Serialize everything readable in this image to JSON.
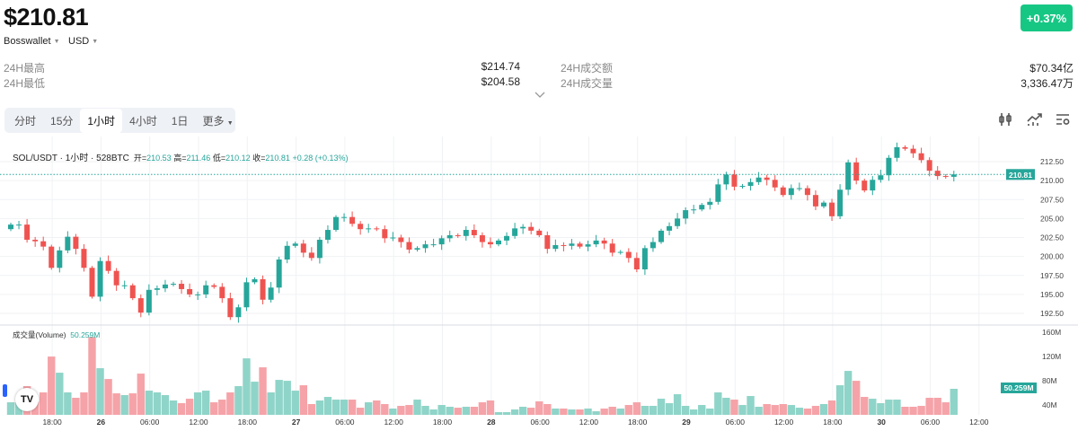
{
  "header": {
    "price": "$210.81",
    "exchange": "Bosswallet",
    "currency": "USD",
    "change_badge": "+0.37%"
  },
  "stats": {
    "high_label": "24H最高",
    "high_value": "$214.74",
    "low_label": "24H最低",
    "low_value": "$204.58",
    "turnover_label": "24H成交额",
    "turnover_value": "$70.34亿",
    "volume_label": "24H成交量",
    "volume_value": "3,336.47万"
  },
  "tabs": [
    "分时",
    "15分",
    "1小时",
    "4小时",
    "1日",
    "更多"
  ],
  "active_tab": "1小时",
  "toolbar_icons": [
    "candlestick-icon",
    "indicator-icon",
    "settings-icon"
  ],
  "legend": {
    "symbol": "SOL/USDT · 1小时 · 528BTC",
    "open_label": "开=",
    "open": "210.53",
    "high_label": "高=",
    "high": "211.46",
    "low_label": "低=",
    "low": "210.12",
    "close_label": "收=",
    "close": "210.81",
    "change": "+0.28 (+0.13%)"
  },
  "volume_legend": {
    "label": "成交量(Volume)",
    "value": "50.259M"
  },
  "colors": {
    "up": "#26a69a",
    "down": "#ef5350",
    "up_vol": "#8fd4c8",
    "down_vol": "#f5a3a8",
    "badge": "#16c784"
  },
  "chart_data": {
    "type": "candlestick",
    "interval": "1h",
    "first_open": 203.6,
    "closes": [
      204.2,
      204.2,
      202.2,
      202.0,
      201.3,
      198.5,
      200.8,
      202.6,
      201.0,
      198.5,
      194.7,
      199.4,
      198.1,
      196.2,
      196.2,
      194.5,
      192.6,
      195.6,
      195.8,
      196.3,
      196.4,
      195.7,
      195.0,
      195.0,
      196.2,
      196.0,
      194.5,
      192.0,
      193.3,
      196.6,
      197.0,
      194.3,
      195.9,
      199.6,
      201.4,
      201.7,
      200.5,
      199.8,
      202.2,
      203.5,
      205.2,
      205.2,
      204.3,
      203.6,
      203.7,
      203.6,
      202.4,
      202.5,
      201.9,
      200.9,
      201.1,
      201.6,
      201.6,
      202.4,
      202.8,
      202.7,
      203.5,
      202.8,
      201.9,
      201.6,
      202.1,
      202.7,
      203.7,
      203.9,
      203.4,
      202.8,
      201.0,
      201.5,
      201.4,
      201.7,
      201.3,
      201.6,
      202.1,
      201.7,
      200.5,
      200.6,
      199.8,
      198.3,
      201.1,
      201.9,
      203.4,
      204.0,
      205.0,
      206.1,
      206.2,
      206.8,
      207.2,
      209.5,
      210.8,
      209.2,
      209.3,
      209.8,
      210.4,
      210.1,
      209.1,
      208.1,
      209.0,
      209.0,
      208.1,
      206.6,
      207.1,
      205.3,
      208.8,
      212.4,
      210.0,
      208.7,
      210.1,
      210.7,
      213.0,
      214.4,
      214.2,
      213.6,
      212.7,
      211.3,
      210.6,
      210.5,
      210.81
    ],
    "volumes_m": [
      24.2,
      24.2,
      55.4,
      26.0,
      43.3,
      112.5,
      81.3,
      43.3,
      32.9,
      43.3,
      150.5,
      90.0,
      69.2,
      41.5,
      38.1,
      41.5,
      79.6,
      46.7,
      43.3,
      38.1,
      27.7,
      22.5,
      31.1,
      43.3,
      46.7,
      24.2,
      29.4,
      43.3,
      55.4,
      109.0,
      64.0,
      91.7,
      43.3,
      67.5,
      65.7,
      46.7,
      57.1,
      20.8,
      27.7,
      34.6,
      29.4,
      29.4,
      29.4,
      13.8,
      24.2,
      27.7,
      20.8,
      12.1,
      17.3,
      19.0,
      29.4,
      17.3,
      10.4,
      19.0,
      15.6,
      13.8,
      15.6,
      15.6,
      24.2,
      27.7,
      5.2,
      5.2,
      10.4,
      15.6,
      13.8,
      26.0,
      20.8,
      12.1,
      12.1,
      10.4,
      10.4,
      12.1,
      6.9,
      12.1,
      15.6,
      12.1,
      19.0,
      24.2,
      17.3,
      17.3,
      31.1,
      22.5,
      39.8,
      17.3,
      10.4,
      19.0,
      12.1,
      43.3,
      32.9,
      29.4,
      19.0,
      36.3,
      15.6,
      20.8,
      19.0,
      20.8,
      19.0,
      13.8,
      12.1,
      17.3,
      20.8,
      27.7,
      57.1,
      84.8,
      65.7,
      34.6,
      31.1,
      22.5,
      29.4,
      29.4,
      15.6,
      15.6,
      17.3,
      32.9,
      32.9,
      24.2,
      50.259
    ],
    "price_ticks": [
      "212.50",
      "210.00",
      "207.50",
      "205.00",
      "202.50",
      "200.00",
      "197.50",
      "195.00",
      "192.50"
    ],
    "volume_ticks": [
      "160M",
      "120M",
      "80M",
      "40M"
    ],
    "time_ticks": [
      {
        "label": "18:00",
        "hour": 2
      },
      {
        "label": "26",
        "hour": 8,
        "bold": true
      },
      {
        "label": "06:00",
        "hour": 14
      },
      {
        "label": "12:00",
        "hour": 20
      },
      {
        "label": "18:00",
        "hour": 26
      },
      {
        "label": "27",
        "hour": 32,
        "bold": true
      },
      {
        "label": "06:00",
        "hour": 38
      },
      {
        "label": "12:00",
        "hour": 44
      },
      {
        "label": "18:00",
        "hour": 50
      },
      {
        "label": "28",
        "hour": 56,
        "bold": true
      },
      {
        "label": "06:00",
        "hour": 62
      },
      {
        "label": "12:00",
        "hour": 68
      },
      {
        "label": "18:00",
        "hour": 74
      },
      {
        "label": "29",
        "hour": 80,
        "bold": true
      },
      {
        "label": "06:00",
        "hour": 86
      },
      {
        "label": "12:00",
        "hour": 92
      },
      {
        "label": "18:00",
        "hour": 98
      },
      {
        "label": "30",
        "hour": 104,
        "bold": true
      },
      {
        "label": "06:00",
        "hour": 110
      },
      {
        "label": "12:00",
        "hour": 116
      }
    ],
    "last_price": "210.81",
    "last_volume": "50.259M"
  }
}
